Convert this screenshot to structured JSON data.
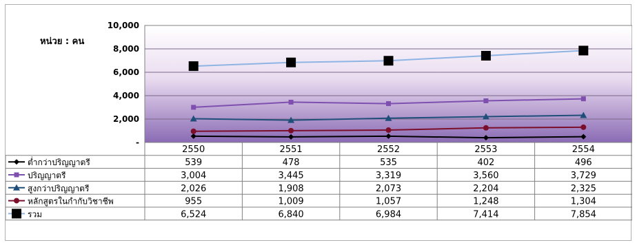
{
  "chart_data": {
    "type": "line",
    "unit_label": "หน่วย : คน",
    "categories": [
      "2550",
      "2551",
      "2552",
      "2553",
      "2554"
    ],
    "ylim": [
      0,
      10000
    ],
    "yticks": [
      "-",
      "2,000",
      "4,000",
      "6,000",
      "8,000",
      "10,000"
    ],
    "ytick_values": [
      0,
      2000,
      4000,
      6000,
      8000,
      10000
    ],
    "grid": true,
    "legend": "data-table",
    "series": [
      {
        "name": "ต่ำกว่าปริญญาตรี",
        "values": [
          539,
          478,
          535,
          402,
          496
        ],
        "labels": [
          "539",
          "478",
          "535",
          "402",
          "496"
        ],
        "color": "#000000",
        "marker": "diamond"
      },
      {
        "name": "ปริญญาตรี",
        "values": [
          3004,
          3445,
          3319,
          3560,
          3729
        ],
        "labels": [
          "3,004",
          "3,445",
          "3,319",
          "3,560",
          "3,729"
        ],
        "color": "#7f4fb0",
        "marker": "square"
      },
      {
        "name": "สูงกว่าปริญญาตรี",
        "values": [
          2026,
          1908,
          2073,
          2204,
          2325
        ],
        "labels": [
          "2,026",
          "1,908",
          "2,073",
          "2,204",
          "2,325"
        ],
        "color": "#1f4e79",
        "marker": "triangle"
      },
      {
        "name": "หลักสูตรในกำกับวิชาชีพ",
        "values": [
          955,
          1009,
          1057,
          1248,
          1304
        ],
        "labels": [
          "955",
          "1,009",
          "1,057",
          "1,248",
          "1,304"
        ],
        "color": "#7b0f2b",
        "marker": "circle"
      },
      {
        "name": "รวม",
        "values": [
          6524,
          6840,
          6984,
          7414,
          7854
        ],
        "labels": [
          "6,524",
          "6,840",
          "6,984",
          "7,414",
          "7,854"
        ],
        "color": "#8eb4e3",
        "marker": "bigsquare"
      }
    ]
  }
}
